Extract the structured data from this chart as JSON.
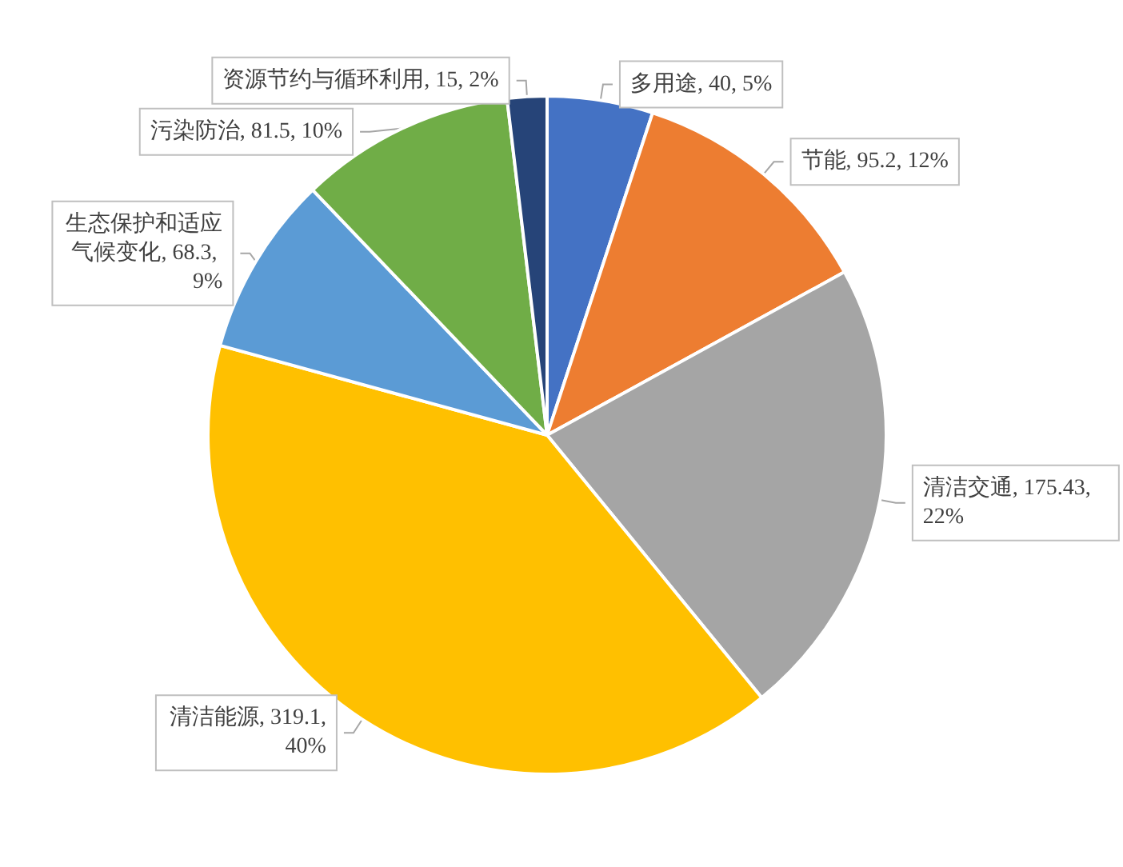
{
  "chart_data": {
    "type": "pie",
    "categories": [
      "多用途",
      "节能",
      "清洁交通",
      "清洁能源",
      "生态保护和适应气候变化",
      "污染防治",
      "资源节约与循环利用"
    ],
    "values": [
      40,
      95.2,
      175.43,
      319.1,
      68.3,
      81.5,
      15
    ],
    "value_labels": [
      "40, 5%",
      "95.2, 12%",
      "175.43, 22%",
      "319.1, 40%",
      "68.3, 9%",
      "81.5, 10%",
      "15, 2%"
    ],
    "colors": [
      "#4472c4",
      "#ed7d31",
      "#a5a5a5",
      "#ffc000",
      "#5b9bd5",
      "#70ad47",
      "#264478"
    ],
    "legend": false
  }
}
